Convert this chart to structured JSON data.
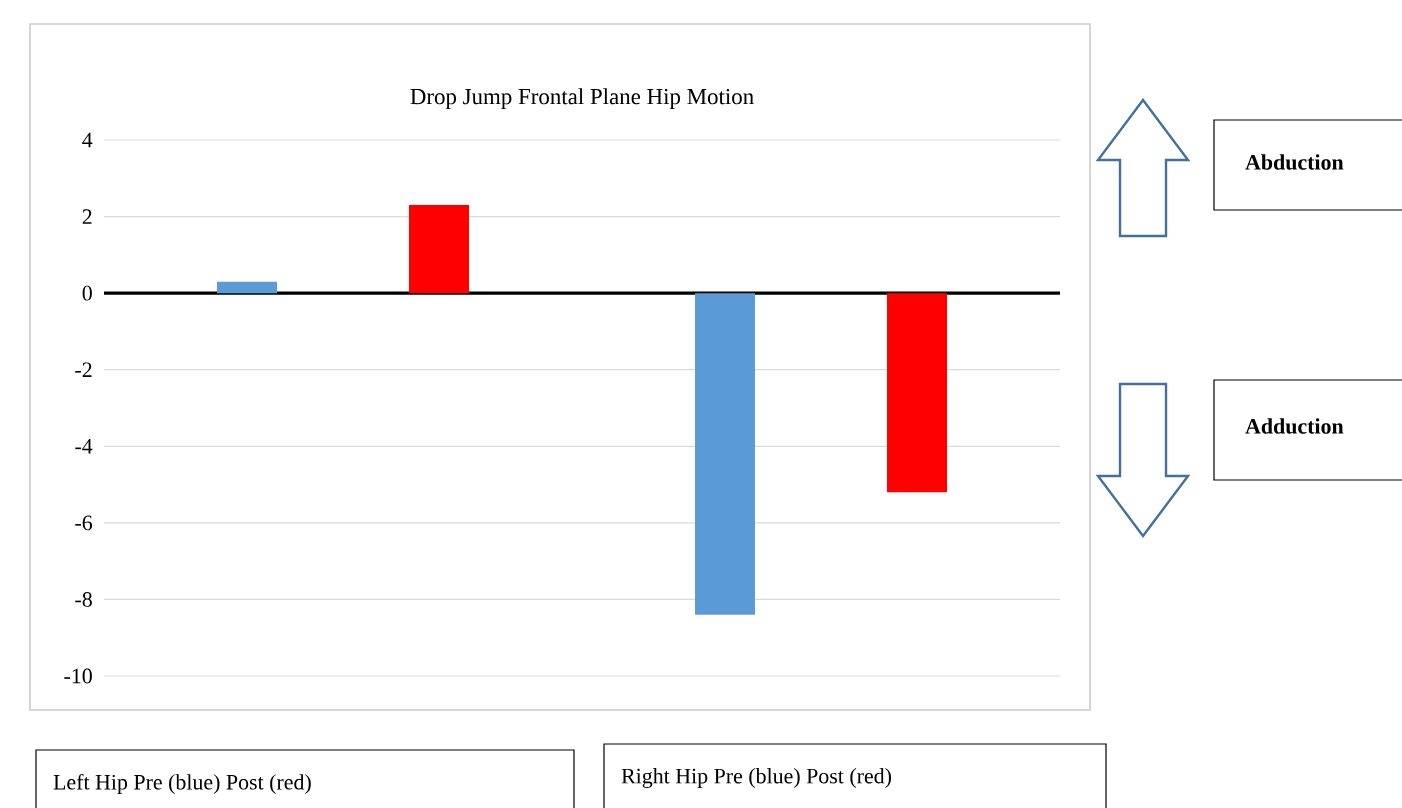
{
  "chart_data": {
    "type": "bar",
    "title": "Drop Jump Frontal Plane Hip Motion",
    "categories": [
      "Left Hip Pre (blue) Post (red)",
      "Right Hip Pre (blue) Post (red)"
    ],
    "series": [
      {
        "color": "#5b9bd5",
        "values": [
          0.3,
          -8.4
        ]
      },
      {
        "color": "#ff0000",
        "values": [
          2.3,
          -5.2
        ]
      }
    ],
    "ylim": [
      -10,
      4
    ],
    "yticks": [
      4,
      2,
      0,
      -2,
      -4,
      -6,
      -8,
      -10
    ],
    "grid": "y",
    "annotations": [
      "Abduction",
      "Adduction"
    ]
  }
}
